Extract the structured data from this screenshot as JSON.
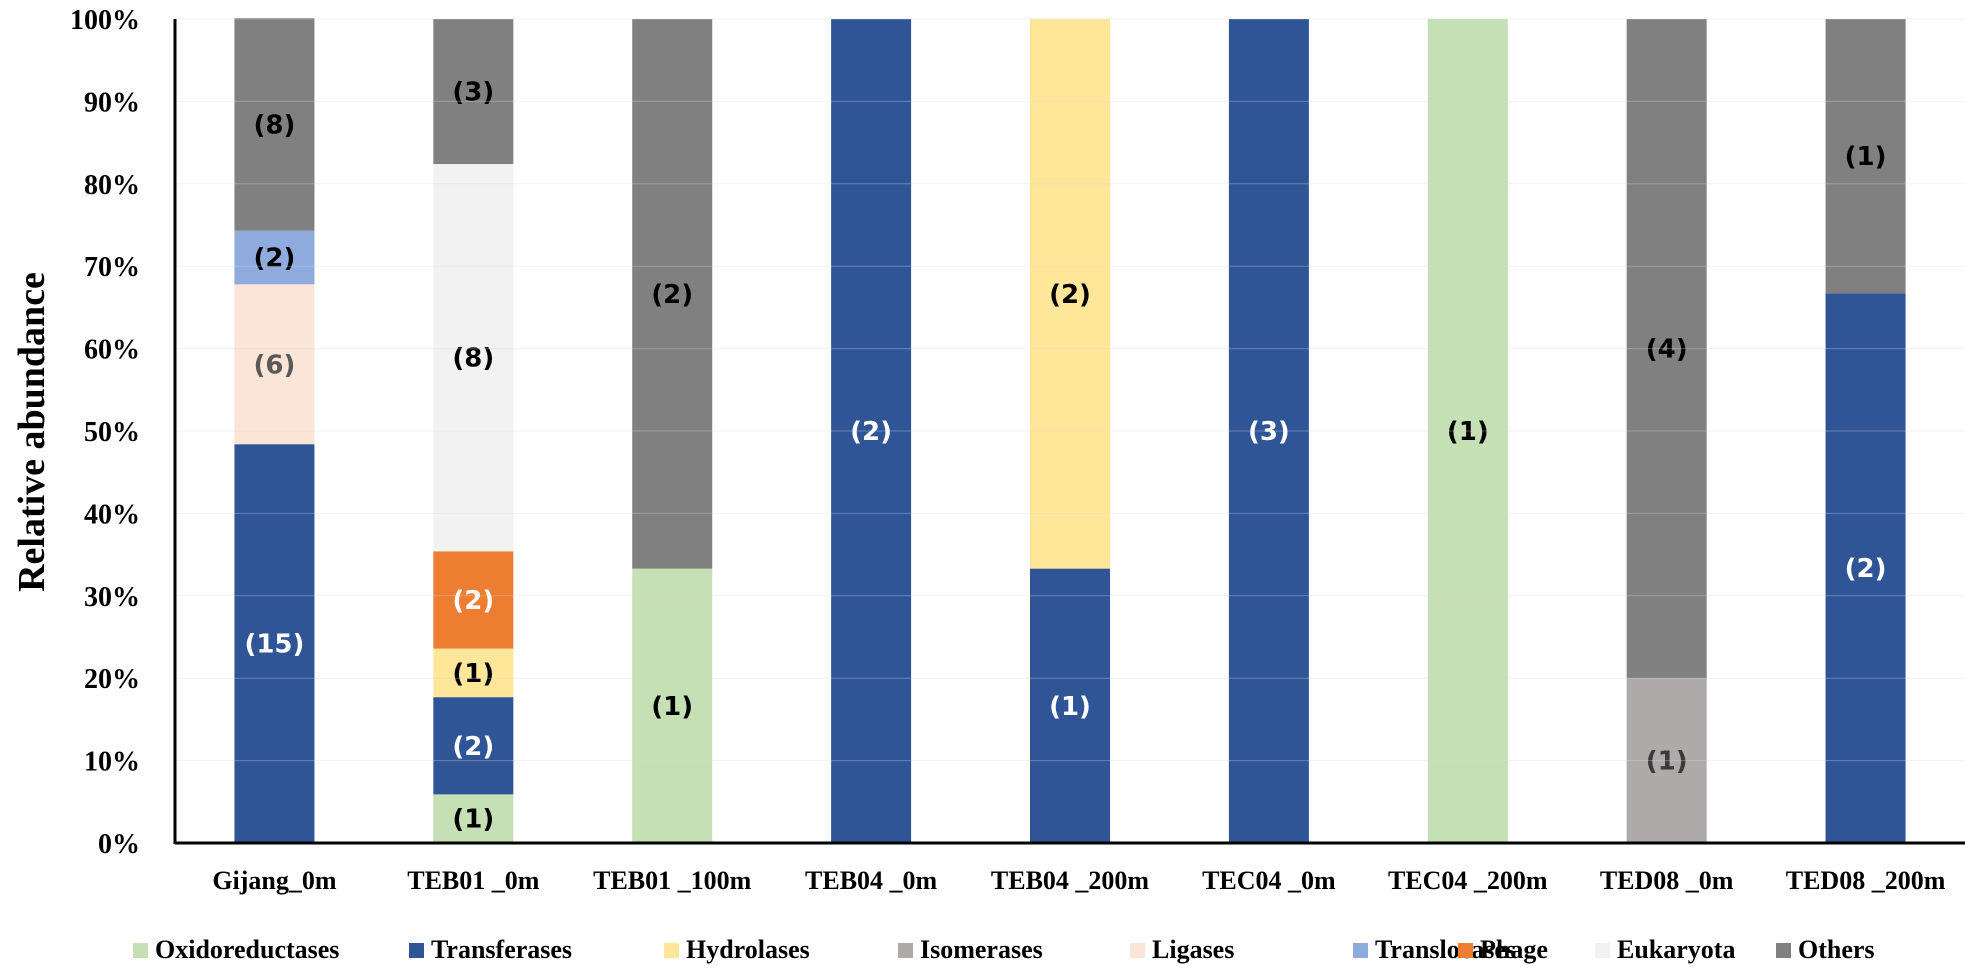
{
  "chart_data": {
    "type": "stacked-bar-100",
    "title": "",
    "xlabel": "",
    "ylabel": "Relative abundance",
    "ylim": [
      0,
      100
    ],
    "yticks": [
      "0%",
      "10%",
      "20%",
      "30%",
      "40%",
      "50%",
      "60%",
      "70%",
      "80%",
      "90%",
      "100%"
    ],
    "grid": true,
    "legend_position": "bottom",
    "categories": [
      "Gijang_0m",
      "TEB01 _0m",
      "TEB01 _100m",
      "TEB04 _0m",
      "TEB04 _200m",
      "TEC04 _0m",
      "TEC04 _200m",
      "TED08 _0m",
      "TED08 _200m"
    ],
    "series": [
      {
        "name": "Oxidoreductases",
        "color": "#c5e0b4",
        "label_color": "#000000",
        "values": [
          0,
          5.9,
          33.3,
          0,
          0,
          0,
          100,
          0,
          0
        ],
        "counts": [
          "",
          "(1)",
          "(1)",
          "",
          "",
          "",
          "(1)",
          "",
          ""
        ]
      },
      {
        "name": "Transferases",
        "color": "#2f5597",
        "label_color": "#ffffff",
        "values": [
          48.4,
          11.8,
          0,
          100,
          33.3,
          100,
          0,
          0,
          66.7
        ],
        "counts": [
          "(15)",
          "(2)",
          "",
          "(2)",
          "(1)",
          "(3)",
          "",
          "",
          "(2)"
        ]
      },
      {
        "name": "Hydrolases",
        "color": "#ffe699",
        "label_color": "#000000",
        "values": [
          0,
          5.9,
          0,
          0,
          66.7,
          0,
          0,
          0,
          0
        ],
        "counts": [
          "",
          "(1)",
          "",
          "",
          "(2)",
          "",
          "",
          "",
          ""
        ]
      },
      {
        "name": "Isomerases",
        "color": "#aeaaaa",
        "label_color": "#3a3a3a",
        "values": [
          0,
          0,
          0,
          0,
          0,
          0,
          0,
          20,
          0
        ],
        "counts": [
          "",
          "",
          "",
          "",
          "",
          "",
          "",
          "(1)",
          ""
        ]
      },
      {
        "name": "Ligases",
        "color": "#fbe5d6",
        "label_color": "#595959",
        "values": [
          19.4,
          0,
          0,
          0,
          0,
          0,
          0,
          0,
          0
        ],
        "counts": [
          "(6)",
          "",
          "",
          "",
          "",
          "",
          "",
          "",
          ""
        ]
      },
      {
        "name": "Translocases",
        "color": "#8faadc",
        "label_color": "#000000",
        "values": [
          6.5,
          0,
          0,
          0,
          0,
          0,
          0,
          0,
          0
        ],
        "counts": [
          "(2)",
          "",
          "",
          "",
          "",
          "",
          "",
          "",
          ""
        ]
      },
      {
        "name": "Phage",
        "color": "#ed7d31",
        "label_color": "#ffffff",
        "values": [
          0,
          11.8,
          0,
          0,
          0,
          0,
          0,
          0,
          0
        ],
        "counts": [
          "",
          "(2)",
          "",
          "",
          "",
          "",
          "",
          "",
          ""
        ]
      },
      {
        "name": "Eukaryota",
        "color": "#f2f2f2",
        "label_color": "#000000",
        "values": [
          0,
          47,
          0,
          0,
          0,
          0,
          0,
          0,
          0
        ],
        "counts": [
          "",
          "(8)",
          "",
          "",
          "",
          "",
          "",
          "",
          ""
        ]
      },
      {
        "name": "Others",
        "color": "#808080",
        "label_color": "#000000",
        "values": [
          25.8,
          17.6,
          66.7,
          0,
          0,
          0,
          0,
          80,
          33.3
        ],
        "counts": [
          "(8)",
          "(3)",
          "(2)",
          "",
          "",
          "",
          "",
          "(4)",
          "(1)"
        ]
      }
    ]
  }
}
